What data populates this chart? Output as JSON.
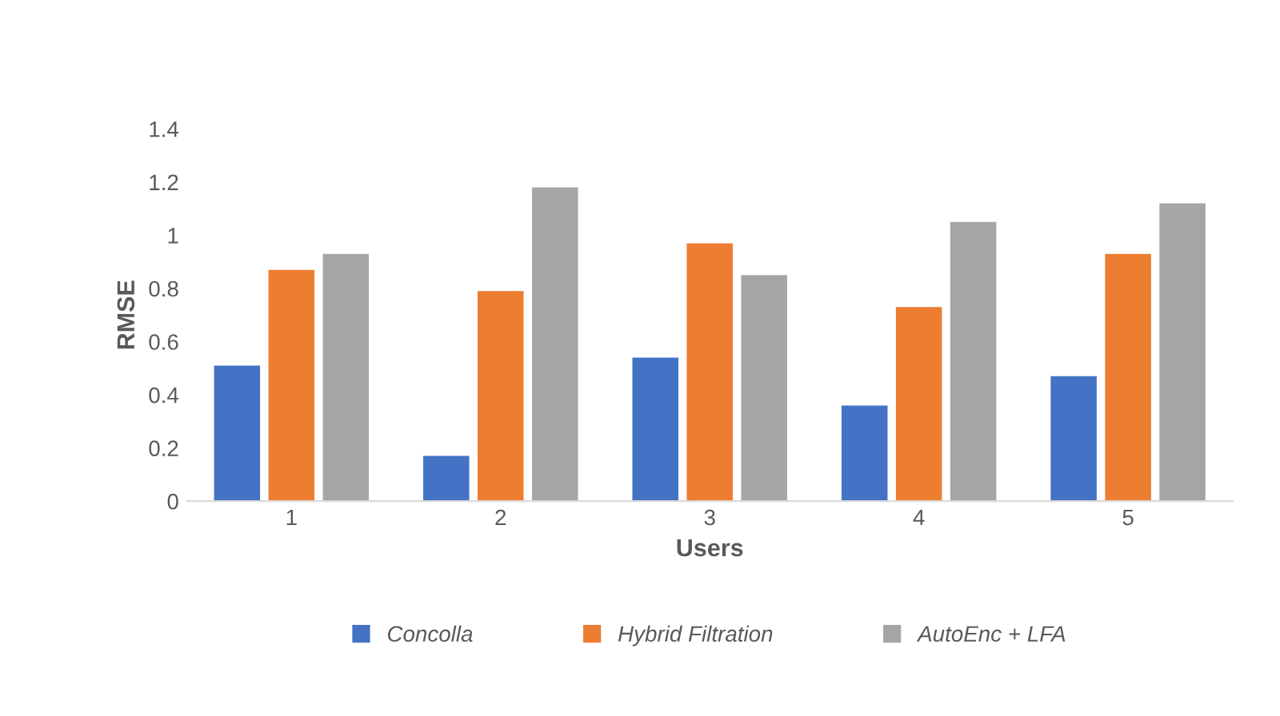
{
  "chart_data": {
    "type": "bar",
    "xlabel": "Users",
    "ylabel": "RMSE",
    "categories": [
      "1",
      "2",
      "3",
      "4",
      "5"
    ],
    "series": [
      {
        "name": "Concolla",
        "color": "#4472c4",
        "values": [
          0.51,
          0.17,
          0.54,
          0.36,
          0.47
        ]
      },
      {
        "name": "Hybrid Filtration",
        "color": "#ed7d31",
        "values": [
          0.87,
          0.79,
          0.97,
          0.73,
          0.93
        ]
      },
      {
        "name": "AutoEnc + LFA",
        "color": "#a5a5a5",
        "values": [
          0.93,
          1.18,
          0.85,
          1.05,
          1.12
        ]
      }
    ],
    "ylim": [
      0,
      1.4
    ],
    "yticks": [
      0,
      0.2,
      0.4,
      0.6,
      0.8,
      1,
      1.2,
      1.4
    ],
    "grid": false,
    "legend": "bottom"
  }
}
